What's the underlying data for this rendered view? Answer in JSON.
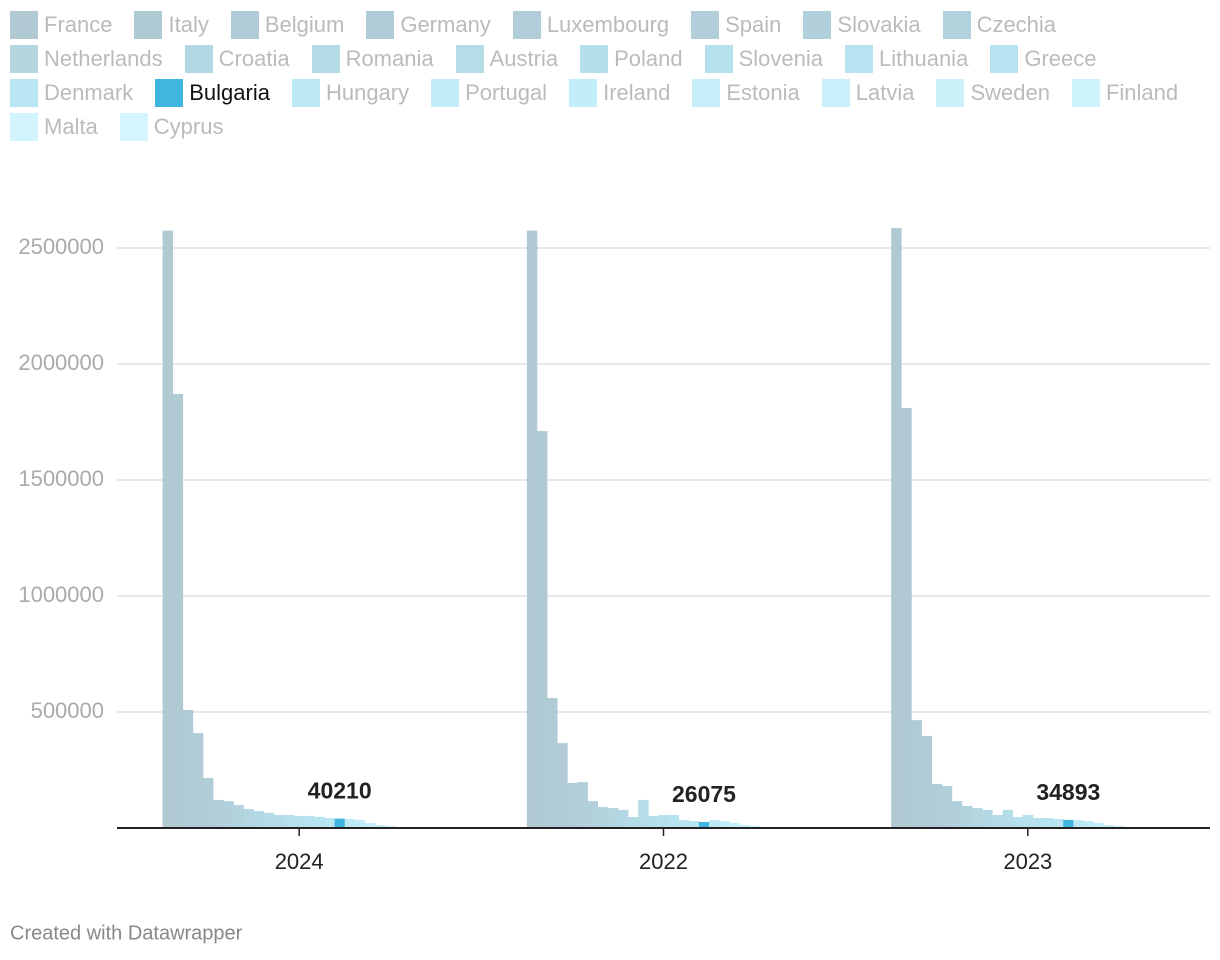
{
  "chart_data": {
    "type": "bar",
    "categories": [
      "2024",
      "2022",
      "2023"
    ],
    "series": [
      {
        "name": "France",
        "color": "#b0c9d3",
        "values": [
          2575000,
          2575000,
          2586000
        ]
      },
      {
        "name": "Italy",
        "color": "#b0cad4",
        "values": [
          1871000,
          1711000,
          1810000
        ]
      },
      {
        "name": "Belgium",
        "color": "#b0cbd5",
        "values": [
          509000,
          560000,
          465000
        ]
      },
      {
        "name": "Germany",
        "color": "#b1ccd6",
        "values": [
          409000,
          366000,
          397000
        ]
      },
      {
        "name": "Luxembourg",
        "color": "#b1cdd8",
        "values": [
          216000,
          194000,
          190000
        ]
      },
      {
        "name": "Spain",
        "color": "#b2cfd9",
        "values": [
          121000,
          198000,
          181000
        ]
      },
      {
        "name": "Slovakia",
        "color": "#b2d0db",
        "values": [
          116000,
          116000,
          116000
        ]
      },
      {
        "name": "Czechia",
        "color": "#b2d3de",
        "values": [
          99000,
          90000,
          95000
        ]
      },
      {
        "name": "Netherlands",
        "color": "#b3d6e1",
        "values": [
          82000,
          86000,
          86000
        ]
      },
      {
        "name": "Croatia",
        "color": "#b3d8e3",
        "values": [
          73000,
          78000,
          78000
        ]
      },
      {
        "name": "Romania",
        "color": "#b3dbe6",
        "values": [
          65000,
          47000,
          56000
        ]
      },
      {
        "name": "Austria",
        "color": "#b4dde8",
        "values": [
          56000,
          121000,
          78000
        ]
      },
      {
        "name": "Poland",
        "color": "#b4dfeb",
        "values": [
          56000,
          52000,
          47000
        ]
      },
      {
        "name": "Slovenia",
        "color": "#b5e1ed",
        "values": [
          52000,
          56000,
          56000
        ]
      },
      {
        "name": "Lithuania",
        "color": "#b6e3ef",
        "values": [
          52000,
          56000,
          43000
        ]
      },
      {
        "name": "Greece",
        "color": "#b8e4f1",
        "values": [
          48000,
          34000,
          43000
        ]
      },
      {
        "name": "Denmark",
        "color": "#bae6f3",
        "values": [
          43000,
          30000,
          39000
        ]
      },
      {
        "name": "Bulgaria",
        "color": "#3fb5e0",
        "highlight": true,
        "values": [
          40210,
          26075,
          34893
        ]
      },
      {
        "name": "Hungary",
        "color": "#bde9f5",
        "values": [
          39000,
          34000,
          34000
        ]
      },
      {
        "name": "Portugal",
        "color": "#c0ebf7",
        "values": [
          35000,
          30000,
          30000
        ]
      },
      {
        "name": "Ireland",
        "color": "#c3edf8",
        "values": [
          22000,
          22000,
          22000
        ]
      },
      {
        "name": "Estonia",
        "color": "#c6eef9",
        "values": [
          13000,
          13000,
          13000
        ]
      },
      {
        "name": "Latvia",
        "color": "#c9f0fa",
        "values": [
          9000,
          9000,
          9000
        ]
      },
      {
        "name": "Sweden",
        "color": "#ccf1fb",
        "values": [
          4000,
          4000,
          4000
        ]
      },
      {
        "name": "Finland",
        "color": "#cff3fc",
        "values": [
          3000,
          3000,
          3000
        ]
      },
      {
        "name": "Malta",
        "color": "#d2f4fc",
        "values": [
          2000,
          2000,
          2000
        ]
      },
      {
        "name": "Cyprus",
        "color": "#d4f5fd",
        "values": [
          1000,
          1000,
          1000
        ]
      }
    ],
    "ylim": [
      0,
      2600000
    ],
    "yticks": [
      500000,
      1000000,
      1500000,
      2000000,
      2500000
    ],
    "grid": true,
    "footer": "Created with Datawrapper"
  }
}
